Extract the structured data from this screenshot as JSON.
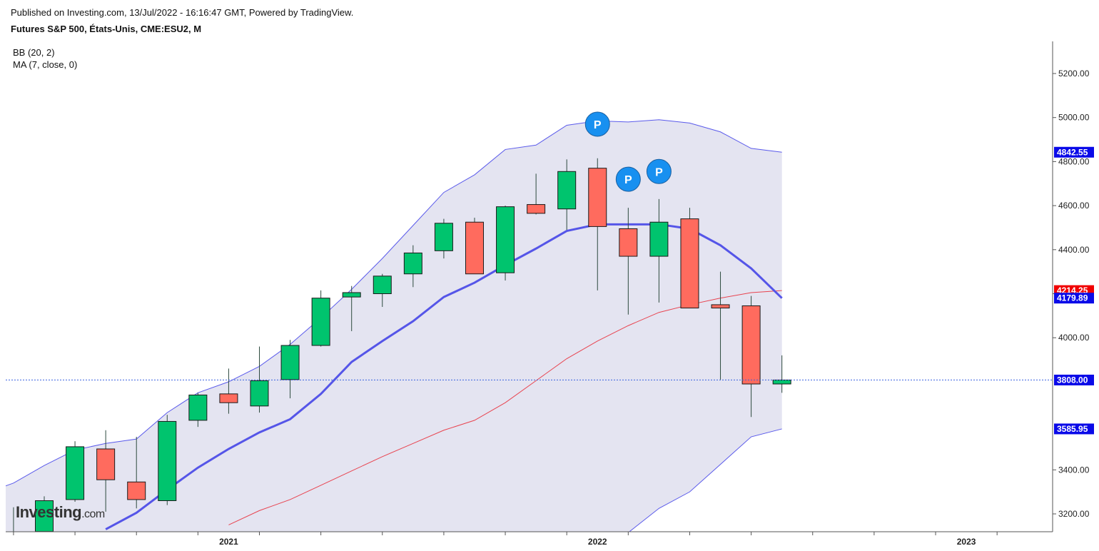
{
  "header": {
    "published": "Published on Investing.com, 13/Jul/2022 - 16:16:47 GMT, Powered by TradingView.",
    "instrument": "Futures S&P 500, États-Unis, CME:ESU2, M"
  },
  "indicators": {
    "bb": "BB (20, 2)",
    "ma": "MA (7, close, 0)"
  },
  "logo": {
    "main": "Investing",
    "suffix": ".com"
  },
  "colors": {
    "up": "#00c46e",
    "down": "#ff6b5e",
    "band_fill": "#e4e4f1",
    "band_line": "#5a5aeb",
    "ma_line": "#5555e8",
    "mid_line": "#e8434f",
    "last_price_line": "#3a62e0",
    "badge_blue": "#0a0ae8",
    "badge_red": "#f00000",
    "marker": "#1890f0"
  },
  "chart_data": {
    "type": "candlestick",
    "interval": "M",
    "ylim": [
      3120,
      5320
    ],
    "y_ticks": [
      "3200.00",
      "3400.00",
      "4000.00",
      "4200.00",
      "4400.00",
      "4600.00",
      "4800.00",
      "5000.00",
      "5200.00"
    ],
    "x_tick_labels": [
      "2021",
      "2022",
      "2023"
    ],
    "grid": false,
    "candles": [
      {
        "date": "2020-06",
        "open": 3095,
        "high": 3230,
        "low": 2930,
        "close": 3100
      },
      {
        "date": "2020-07",
        "open": 3120,
        "high": 3280,
        "low": 3100,
        "close": 3260
      },
      {
        "date": "2020-08",
        "open": 3265,
        "high": 3530,
        "low": 3255,
        "close": 3505
      },
      {
        "date": "2020-09",
        "open": 3495,
        "high": 3580,
        "low": 3210,
        "close": 3355
      },
      {
        "date": "2020-10",
        "open": 3345,
        "high": 3550,
        "low": 3225,
        "close": 3265
      },
      {
        "date": "2020-11",
        "open": 3260,
        "high": 3650,
        "low": 3240,
        "close": 3620
      },
      {
        "date": "2020-12",
        "open": 3625,
        "high": 3750,
        "low": 3595,
        "close": 3740
      },
      {
        "date": "2021-01",
        "open": 3745,
        "high": 3860,
        "low": 3655,
        "close": 3705
      },
      {
        "date": "2021-02",
        "open": 3690,
        "high": 3960,
        "low": 3660,
        "close": 3805
      },
      {
        "date": "2021-03",
        "open": 3810,
        "high": 3990,
        "low": 3725,
        "close": 3965
      },
      {
        "date": "2021-04",
        "open": 3965,
        "high": 4215,
        "low": 3960,
        "close": 4180
      },
      {
        "date": "2021-05",
        "open": 4185,
        "high": 4235,
        "low": 4030,
        "close": 4205
      },
      {
        "date": "2021-06",
        "open": 4200,
        "high": 4290,
        "low": 4140,
        "close": 4280
      },
      {
        "date": "2021-07",
        "open": 4290,
        "high": 4420,
        "low": 4230,
        "close": 4385
      },
      {
        "date": "2021-08",
        "open": 4395,
        "high": 4540,
        "low": 4360,
        "close": 4520
      },
      {
        "date": "2021-09",
        "open": 4525,
        "high": 4545,
        "low": 4290,
        "close": 4290
      },
      {
        "date": "2021-10",
        "open": 4295,
        "high": 4600,
        "low": 4260,
        "close": 4595
      },
      {
        "date": "2021-11",
        "open": 4605,
        "high": 4745,
        "low": 4560,
        "close": 4565
      },
      {
        "date": "2021-12",
        "open": 4585,
        "high": 4810,
        "low": 4490,
        "close": 4755
      },
      {
        "date": "2022-01",
        "open": 4770,
        "high": 4815,
        "low": 4215,
        "close": 4505
      },
      {
        "date": "2022-02",
        "open": 4495,
        "high": 4590,
        "low": 4105,
        "close": 4370
      },
      {
        "date": "2022-03",
        "open": 4370,
        "high": 4630,
        "low": 4160,
        "close": 4525
      },
      {
        "date": "2022-04",
        "open": 4540,
        "high": 4590,
        "low": 4135,
        "close": 4135
      },
      {
        "date": "2022-05",
        "open": 4150,
        "high": 4300,
        "low": 3810,
        "close": 4135
      },
      {
        "date": "2022-06",
        "open": 4145,
        "high": 4190,
        "low": 3640,
        "close": 3790
      },
      {
        "date": "2022-07",
        "open": 3790,
        "high": 3920,
        "low": 3750,
        "close": 3808
      }
    ],
    "bb_upper": [
      [
        "2020-05",
        3290
      ],
      [
        "2020-06",
        3340
      ],
      [
        "2020-07",
        3420
      ],
      [
        "2020-08",
        3490
      ],
      [
        "2020-09",
        3520
      ],
      [
        "2020-10",
        3540
      ],
      [
        "2020-11",
        3660
      ],
      [
        "2020-12",
        3750
      ],
      [
        "2021-01",
        3800
      ],
      [
        "2021-02",
        3870
      ],
      [
        "2021-03",
        3970
      ],
      [
        "2021-04",
        4090
      ],
      [
        "2021-05",
        4220
      ],
      [
        "2021-06",
        4360
      ],
      [
        "2021-07",
        4510
      ],
      [
        "2021-08",
        4660
      ],
      [
        "2021-09",
        4740
      ],
      [
        "2021-10",
        4855
      ],
      [
        "2021-11",
        4875
      ],
      [
        "2021-12",
        4965
      ],
      [
        "2022-01",
        4985
      ],
      [
        "2022-02",
        4980
      ],
      [
        "2022-03",
        4990
      ],
      [
        "2022-04",
        4975
      ],
      [
        "2022-05",
        4935
      ],
      [
        "2022-06",
        4860
      ],
      [
        "2022-07",
        4842.55
      ]
    ],
    "bb_middle": [
      [
        "2021-01",
        3150
      ],
      [
        "2021-02",
        3215
      ],
      [
        "2021-03",
        3265
      ],
      [
        "2021-04",
        3330
      ],
      [
        "2021-05",
        3395
      ],
      [
        "2021-06",
        3460
      ],
      [
        "2021-07",
        3520
      ],
      [
        "2021-08",
        3580
      ],
      [
        "2021-09",
        3625
      ],
      [
        "2021-10",
        3705
      ],
      [
        "2021-11",
        3805
      ],
      [
        "2021-12",
        3905
      ],
      [
        "2022-01",
        3985
      ],
      [
        "2022-02",
        4055
      ],
      [
        "2022-03",
        4115
      ],
      [
        "2022-04",
        4150
      ],
      [
        "2022-05",
        4180
      ],
      [
        "2022-06",
        4205
      ],
      [
        "2022-07",
        4214.25
      ]
    ],
    "bb_lower": [
      [
        "2022-02",
        3115
      ],
      [
        "2022-03",
        3225
      ],
      [
        "2022-04",
        3300
      ],
      [
        "2022-05",
        3425
      ],
      [
        "2022-06",
        3550
      ],
      [
        "2022-07",
        3585.95
      ]
    ],
    "ma7": [
      [
        "2020-09",
        3130
      ],
      [
        "2020-10",
        3205
      ],
      [
        "2020-11",
        3310
      ],
      [
        "2020-12",
        3410
      ],
      [
        "2021-01",
        3495
      ],
      [
        "2021-02",
        3570
      ],
      [
        "2021-03",
        3630
      ],
      [
        "2021-04",
        3745
      ],
      [
        "2021-05",
        3890
      ],
      [
        "2021-06",
        3985
      ],
      [
        "2021-07",
        4075
      ],
      [
        "2021-08",
        4185
      ],
      [
        "2021-09",
        4250
      ],
      [
        "2021-10",
        4330
      ],
      [
        "2021-11",
        4405
      ],
      [
        "2021-12",
        4485
      ],
      [
        "2022-01",
        4515
      ],
      [
        "2022-02",
        4515
      ],
      [
        "2022-03",
        4515
      ],
      [
        "2022-04",
        4495
      ],
      [
        "2022-05",
        4420
      ],
      [
        "2022-06",
        4315
      ],
      [
        "2022-07",
        4179.89
      ]
    ],
    "last_price": 3808.0,
    "price_badges": [
      {
        "value": 4842.55,
        "label": "4842.55",
        "color": "blue"
      },
      {
        "value": 4214.25,
        "label": "4214.25",
        "color": "red"
      },
      {
        "value": 4179.89,
        "label": "4179.89",
        "color": "blue"
      },
      {
        "value": 3808.0,
        "label": "3808.00",
        "color": "blue"
      },
      {
        "value": 3585.95,
        "label": "3585.95",
        "color": "blue"
      }
    ],
    "markers": [
      {
        "date": "2022-01",
        "price": 4970,
        "label": "P"
      },
      {
        "date": "2022-02",
        "price": 4720,
        "label": "P"
      },
      {
        "date": "2022-03",
        "price": 4755,
        "label": "P"
      }
    ]
  }
}
